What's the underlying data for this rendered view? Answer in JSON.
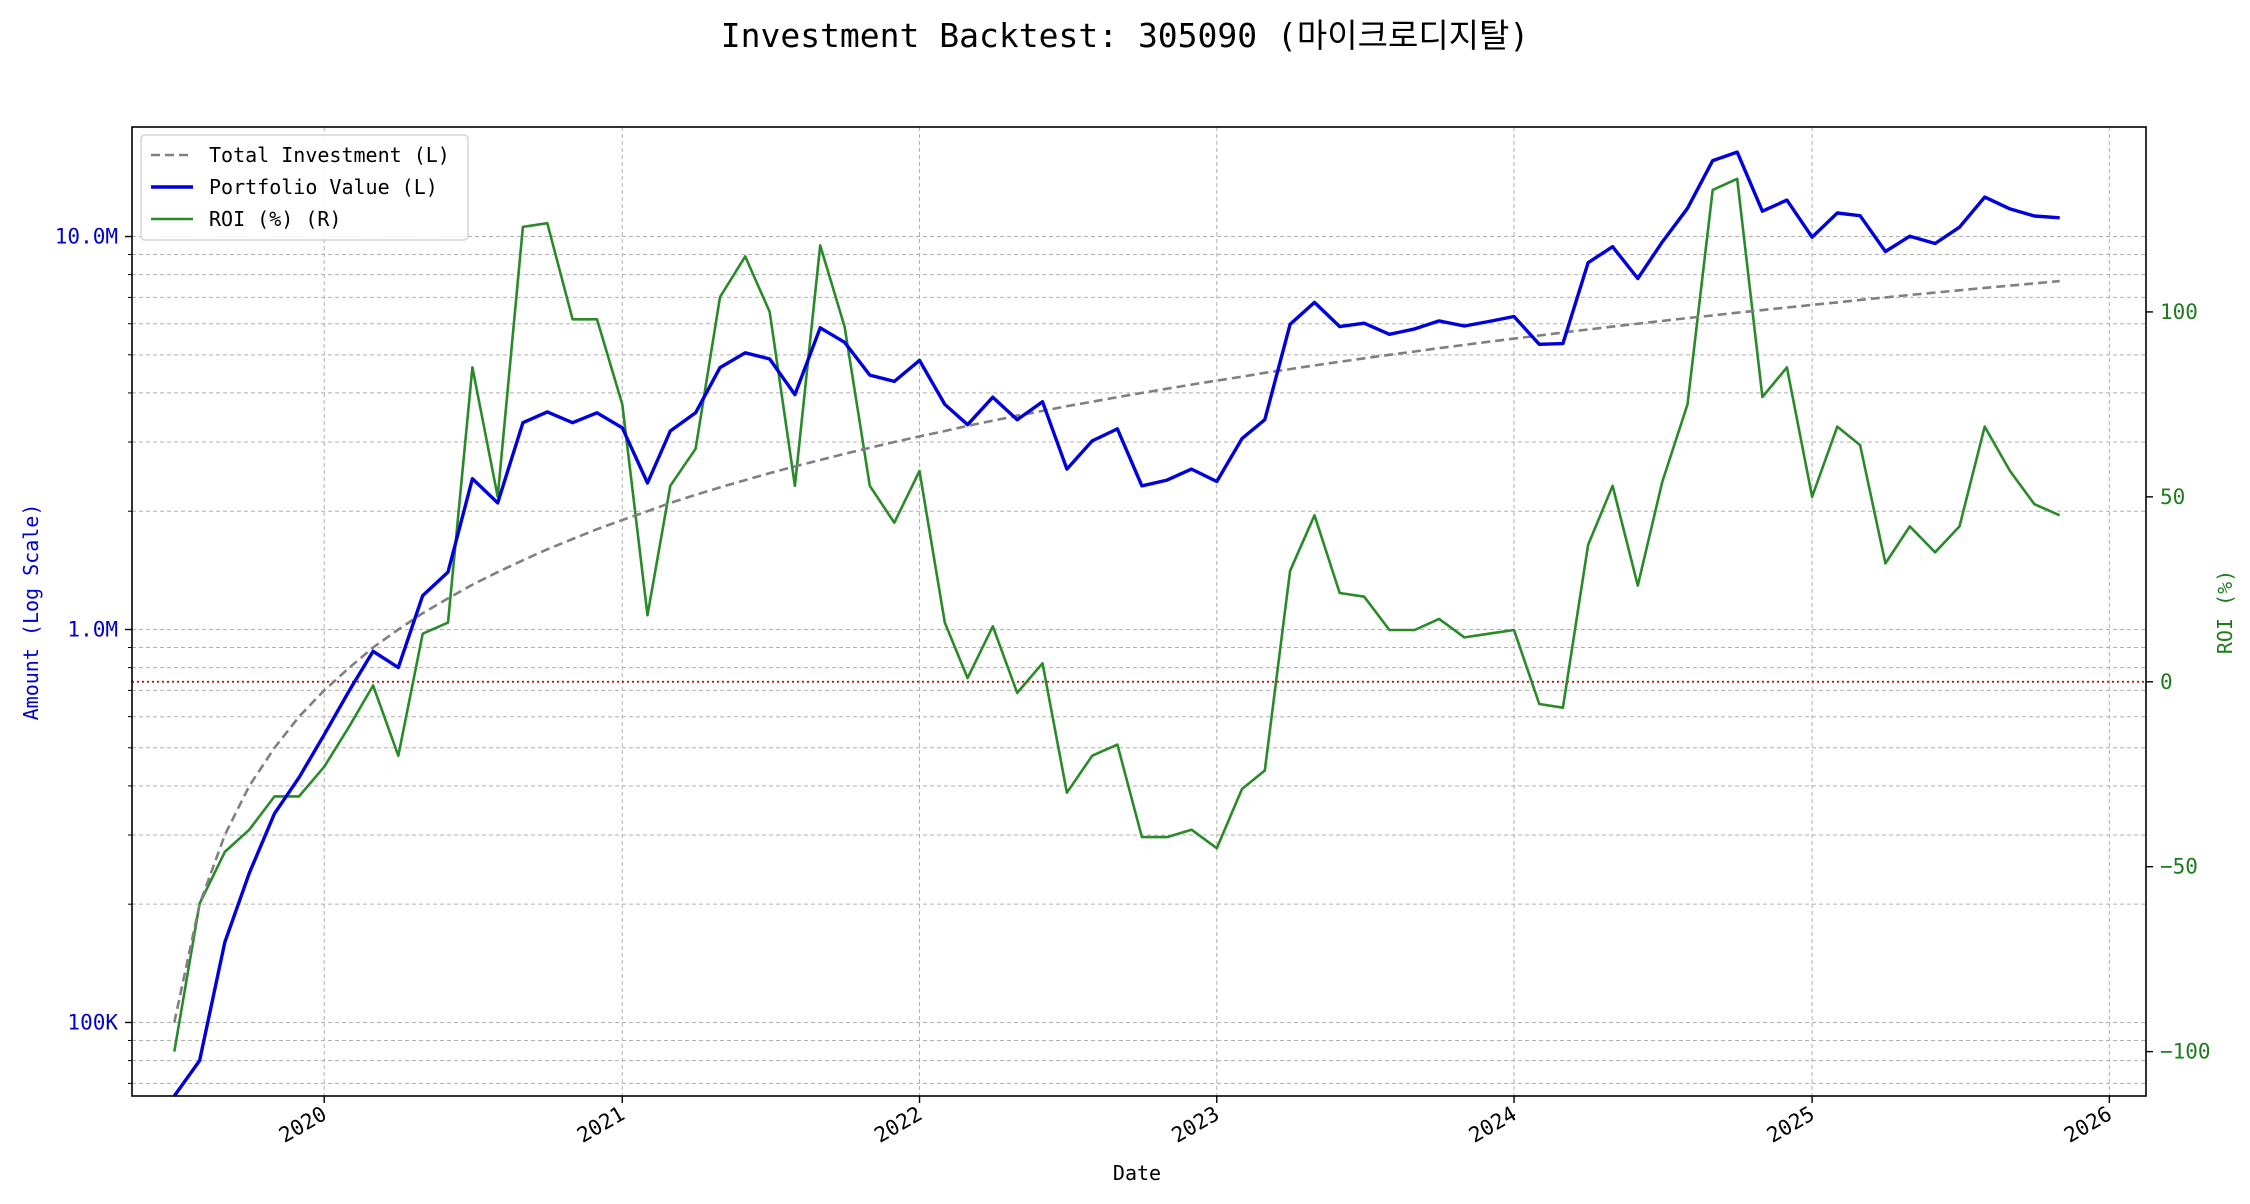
{
  "chart_data": {
    "type": "line",
    "title": "Investment Backtest: 305090 (마이크로디지탈)",
    "xlabel": "Date",
    "ylabel_left": "Amount (Log Scale)",
    "ylabel_right": "ROI (%)",
    "left_axis": {
      "scale": "log",
      "range": [
        65000,
        19000000
      ],
      "ticks": [
        {
          "value": 100000,
          "label": "100K"
        },
        {
          "value": 1000000,
          "label": "1.0M"
        },
        {
          "value": 10000000,
          "label": "10.0M"
        }
      ]
    },
    "right_axis": {
      "scale": "linear",
      "range": [
        -112,
        150
      ],
      "ticks": [
        {
          "value": -100,
          "label": "−100"
        },
        {
          "value": -50,
          "label": "−50"
        },
        {
          "value": 0,
          "label": "0"
        },
        {
          "value": 50,
          "label": "50"
        },
        {
          "value": 100,
          "label": "100"
        }
      ]
    },
    "x_axis": {
      "range": [
        "2019-05-10",
        "2026-02-15"
      ],
      "ticks": [
        {
          "value": "2020-01-01",
          "label": "2020"
        },
        {
          "value": "2021-01-01",
          "label": "2021"
        },
        {
          "value": "2022-01-01",
          "label": "2022"
        },
        {
          "value": "2023-01-01",
          "label": "2023"
        },
        {
          "value": "2024-01-01",
          "label": "2024"
        },
        {
          "value": "2025-01-01",
          "label": "2025"
        },
        {
          "value": "2026-01-01",
          "label": "2026"
        }
      ]
    },
    "grid": true,
    "legend_position": "top-left",
    "reference_line": {
      "axis": "right",
      "value": 0,
      "color": "#cc0000",
      "style": "dotted"
    },
    "colors": {
      "total_investment": "#808080",
      "portfolio_value": "#0000dd",
      "roi": "#2a8a2a",
      "left_axis": "#0000cc",
      "right_axis": "#1e7b1e"
    },
    "x": [
      "2019-07-01",
      "2019-08-01",
      "2019-09-01",
      "2019-10-01",
      "2019-11-01",
      "2019-12-01",
      "2020-01-01",
      "2020-02-01",
      "2020-03-01",
      "2020-04-01",
      "2020-05-01",
      "2020-06-01",
      "2020-07-01",
      "2020-08-01",
      "2020-09-01",
      "2020-10-01",
      "2020-11-01",
      "2020-12-01",
      "2021-01-01",
      "2021-02-01",
      "2021-03-01",
      "2021-04-01",
      "2021-05-01",
      "2021-06-01",
      "2021-07-01",
      "2021-08-01",
      "2021-09-01",
      "2021-10-01",
      "2021-11-01",
      "2021-12-01",
      "2022-01-01",
      "2022-02-01",
      "2022-03-01",
      "2022-04-01",
      "2022-05-01",
      "2022-06-01",
      "2022-07-01",
      "2022-08-01",
      "2022-09-01",
      "2022-10-01",
      "2022-11-01",
      "2022-12-01",
      "2023-01-01",
      "2023-02-01",
      "2023-03-01",
      "2023-04-01",
      "2023-05-01",
      "2023-06-01",
      "2023-07-01",
      "2023-08-01",
      "2023-09-01",
      "2023-10-01",
      "2023-11-01",
      "2023-12-01",
      "2024-01-01",
      "2024-02-01",
      "2024-03-01",
      "2024-04-01",
      "2024-05-01",
      "2024-06-01",
      "2024-07-01",
      "2024-08-01",
      "2024-09-01",
      "2024-10-01",
      "2024-11-01",
      "2024-12-01",
      "2025-01-01",
      "2025-02-01",
      "2025-03-01",
      "2025-04-01",
      "2025-05-01",
      "2025-06-01",
      "2025-07-01",
      "2025-08-01",
      "2025-09-01",
      "2025-10-01",
      "2025-11-01"
    ],
    "series": [
      {
        "name": "Total Investment (L)",
        "axis": "left",
        "style": "dashed",
        "values": [
          100000,
          200000,
          300000,
          400000,
          500000,
          600000,
          700000,
          800000,
          900000,
          1000000,
          1100000,
          1200000,
          1300000,
          1400000,
          1500000,
          1600000,
          1700000,
          1800000,
          1900000,
          2000000,
          2100000,
          2200000,
          2300000,
          2400000,
          2500000,
          2600000,
          2700000,
          2800000,
          2900000,
          3000000,
          3100000,
          3200000,
          3300000,
          3400000,
          3500000,
          3600000,
          3700000,
          3800000,
          3900000,
          4000000,
          4100000,
          4200000,
          4300000,
          4400000,
          4500000,
          4600000,
          4700000,
          4800000,
          4900000,
          5000000,
          5100000,
          5200000,
          5300000,
          5400000,
          5500000,
          5600000,
          5700000,
          5800000,
          5900000,
          6000000,
          6100000,
          6200000,
          6300000,
          6400000,
          6500000,
          6600000,
          6700000,
          6800000,
          6900000,
          7000000,
          7100000,
          7200000,
          7300000,
          7400000,
          7500000,
          7600000,
          7700000
        ]
      },
      {
        "name": "Portfolio Value (L)",
        "axis": "left",
        "style": "solid",
        "values": [
          0,
          80000,
          160000,
          240000,
          340000,
          420000,
          540000,
          700000,
          880000,
          800000,
          1220000,
          1400000,
          2420000,
          2100000,
          3360000,
          3580000,
          3360000,
          3560000,
          3260000,
          2360000,
          3200000,
          3560000,
          4640000,
          5060000,
          4880000,
          3960000,
          5860000,
          5380000,
          4440000,
          4280000,
          4840000,
          3740000,
          3320000,
          3900000,
          3420000,
          3800000,
          2560000,
          3020000,
          3240000,
          2320000,
          2400000,
          2560000,
          2380000,
          3060000,
          3420000,
          5980000,
          6800000,
          5900000,
          6020000,
          5640000,
          5820000,
          6100000,
          5920000,
          6080000,
          6260000,
          5320000,
          5340000,
          8580000,
          9420000,
          7820000,
          9680000,
          11800000,
          15600000,
          16400000,
          11600000,
          12380000,
          9960000,
          11480000,
          11300000,
          9160000,
          10020000,
          9600000,
          10560000,
          12600000,
          11760000,
          11280000,
          11160000
        ]
      },
      {
        "name": "ROI (%) (R)",
        "axis": "right",
        "style": "solid",
        "values": [
          -100,
          -60,
          -46,
          -40,
          -31,
          -31,
          -23,
          -12,
          -1,
          -20,
          13,
          16,
          85,
          50,
          123,
          124,
          98,
          98,
          75,
          18,
          53,
          63,
          104,
          115,
          100,
          53,
          118,
          96,
          53,
          43,
          57,
          16,
          1,
          15,
          -3,
          5,
          -30,
          -20,
          -17,
          -42,
          -42,
          -40,
          -45,
          -29,
          -24,
          30,
          45,
          24,
          23,
          14,
          14,
          17,
          12,
          13,
          14,
          -6,
          -7,
          37,
          53,
          26,
          54,
          75,
          133,
          136,
          77,
          85,
          50,
          69,
          64,
          32,
          42,
          35,
          42,
          69,
          57,
          48,
          45
        ]
      }
    ]
  }
}
